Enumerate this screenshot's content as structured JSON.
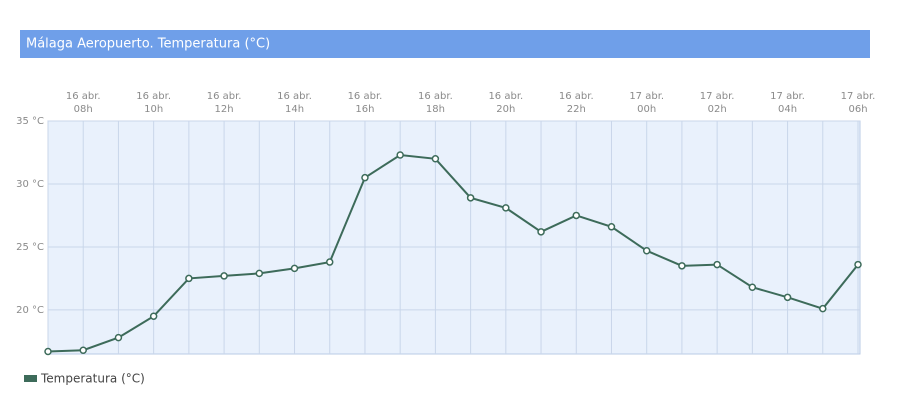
{
  "chart_data": {
    "type": "line",
    "title": "Málaga Aeropuerto. Temperatura (°C)",
    "categories": [
      null,
      [
        "16 abr.",
        "08h"
      ],
      null,
      [
        "16 abr.",
        "10h"
      ],
      null,
      [
        "16 abr.",
        "12h"
      ],
      null,
      [
        "16 abr.",
        "14h"
      ],
      null,
      [
        "16 abr.",
        "16h"
      ],
      null,
      [
        "16 abr.",
        "18h"
      ],
      null,
      [
        "16 abr.",
        "20h"
      ],
      null,
      [
        "16 abr.",
        "22h"
      ],
      null,
      [
        "17 abr.",
        "00h"
      ],
      null,
      [
        "17 abr.",
        "02h"
      ],
      null,
      [
        "17 abr.",
        "04h"
      ],
      null,
      [
        "17 abr.",
        "06h"
      ]
    ],
    "series": [
      {
        "name": "Temperatura (°C)",
        "color": "#3d6b5a",
        "values": [
          16.7,
          16.8,
          17.8,
          19.5,
          22.5,
          22.7,
          22.9,
          23.3,
          23.8,
          30.5,
          32.3,
          32.0,
          28.9,
          28.1,
          26.2,
          27.5,
          26.6,
          24.7,
          23.5,
          23.6,
          21.8,
          21.0,
          20.1,
          23.6
        ]
      }
    ],
    "ylim": [
      16.5,
      35
    ],
    "yticks": [
      {
        "value": 20,
        "label": "20 °C"
      },
      {
        "value": 25,
        "label": "25 °C"
      },
      {
        "value": 30,
        "label": "30 °C"
      },
      {
        "value": 35,
        "label": "35 °C"
      }
    ],
    "grid": true
  }
}
